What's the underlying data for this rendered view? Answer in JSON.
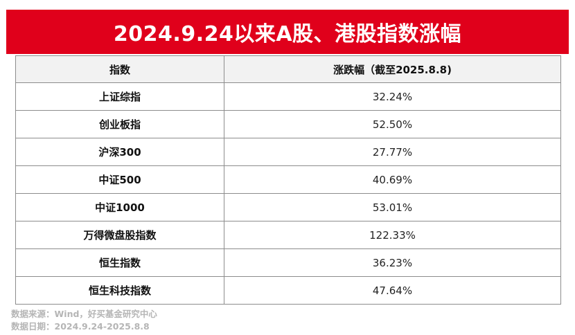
{
  "header": {
    "title": "2024.9.24以来A股、港股指数涨幅"
  },
  "chart_data": {
    "type": "table",
    "columns": [
      "指数",
      "涨跌幅（截至2025.8.8)"
    ],
    "rows": [
      {
        "name": "上证综指",
        "value": "32.24%"
      },
      {
        "name": "创业板指",
        "value": "52.50%"
      },
      {
        "name": "沪深300",
        "value": "27.77%"
      },
      {
        "name": "中证500",
        "value": "40.69%"
      },
      {
        "name": "中证1000",
        "value": "53.01%"
      },
      {
        "name": "万得微盘股指数",
        "value": "122.33%"
      },
      {
        "name": "恒生指数",
        "value": "36.23%"
      },
      {
        "name": "恒生科技指数",
        "value": "47.64%"
      }
    ]
  },
  "footer": {
    "source": "数据来源：Wind，好买基金研究中心",
    "date": "数据日期：2024.9.24-2025.8.8"
  },
  "colors": {
    "banner": "#e0001b",
    "header_row": "#f2f2f2",
    "border": "#8c8c8c",
    "footer_text": "#b5b5b5"
  }
}
